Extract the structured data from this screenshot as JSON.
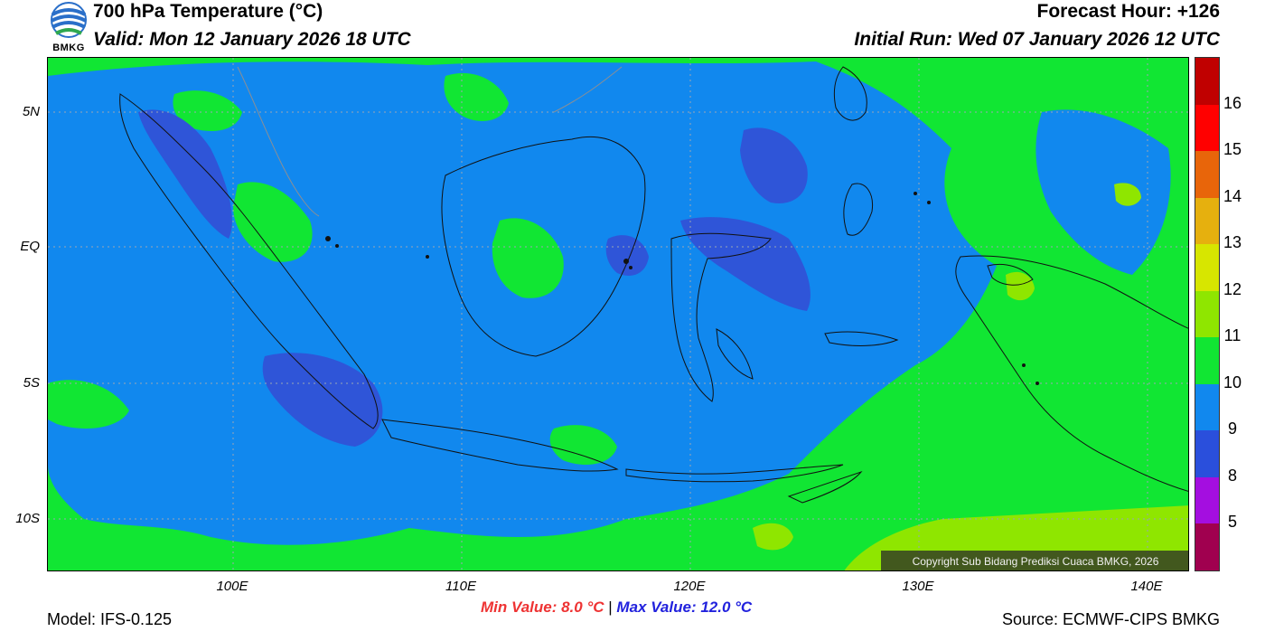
{
  "header": {
    "title": "700 hPa Temperature (°C)",
    "valid": "Valid: Mon 12 January 2026 18 UTC",
    "forecast_hour": "Forecast Hour: +126",
    "initial_run": "Initial Run: Wed 07 January 2026 12 UTC",
    "logo_text": "BMKG"
  },
  "map": {
    "lat_labels": [
      "5N",
      "EQ",
      "5S",
      "10S"
    ],
    "lon_labels": [
      "100E",
      "110E",
      "120E",
      "130E",
      "140E"
    ],
    "copyright": "Copyright Sub Bidang Prediksi Cuaca BMKG, 2026"
  },
  "colorbar": {
    "labels": [
      "16",
      "15",
      "14",
      "13",
      "12",
      "11",
      "10",
      "9",
      "8",
      "5"
    ],
    "colors": [
      "#c00000",
      "#ff0000",
      "#e8650a",
      "#e6b00e",
      "#d7e600",
      "#8fe600",
      "#11e633",
      "#1188ee",
      "#2a4fdc",
      "#a40ee0",
      "#a0004f"
    ]
  },
  "footer": {
    "min_label": "Min Value: 8.0 °C",
    "separator": "|",
    "max_label": "Max Value: 12.0 °C",
    "model": "Model: IFS-0.125",
    "source": "Source: ECMWF-CIPS BMKG"
  },
  "colors": {
    "temp_9": "#1188ee",
    "temp_10": "#11e633",
    "temp_8": "#2f55d8",
    "temp_11": "#8fe600"
  }
}
